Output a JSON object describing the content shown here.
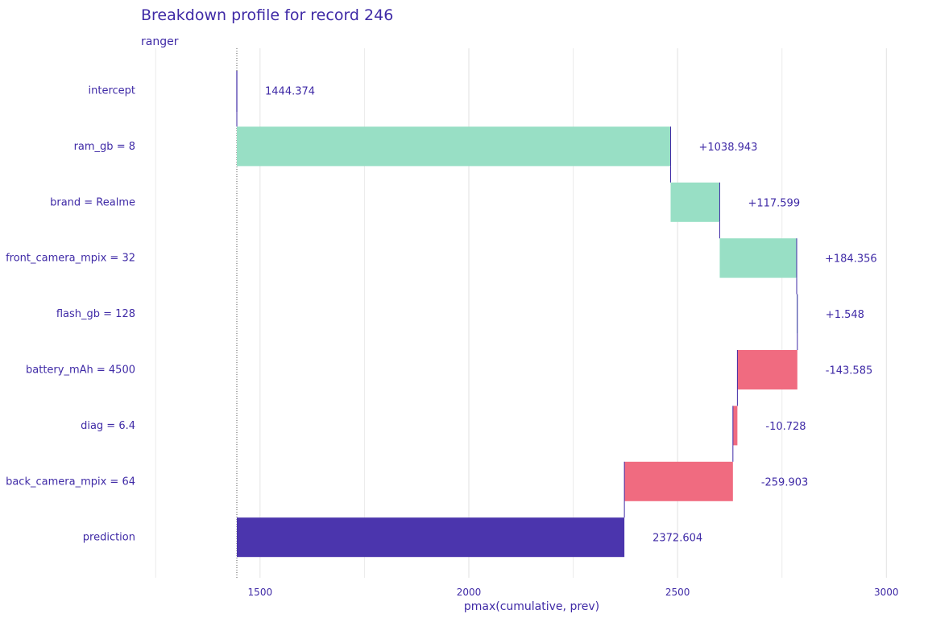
{
  "chart_data": {
    "type": "waterfall",
    "title": "Breakdown profile for record 246",
    "subtitle": "ranger",
    "xlabel": "pmax(cumulative, prev)",
    "xlim": [
      1250,
      3000
    ],
    "xticks": [
      1500,
      2000,
      2500,
      3000
    ],
    "grid": true,
    "colors": {
      "positive": "#98dfc5",
      "negative": "#f06b80",
      "prediction": "#4b35ad",
      "line": "#3f2aa6"
    },
    "bars": [
      {
        "label": "intercept",
        "start": 1444.374,
        "end": 1444.374,
        "value_label": "1444.374",
        "kind": "intercept"
      },
      {
        "label": "ram_gb = 8",
        "start": 1444.374,
        "end": 2483.317,
        "value_label": "+1038.943",
        "kind": "positive"
      },
      {
        "label": "brand = Realme",
        "start": 2483.317,
        "end": 2600.916,
        "value_label": "+117.599",
        "kind": "positive"
      },
      {
        "label": "front_camera_mpix = 32",
        "start": 2600.916,
        "end": 2785.272,
        "value_label": "+184.356",
        "kind": "positive"
      },
      {
        "label": "flash_gb = 128",
        "start": 2785.272,
        "end": 2786.82,
        "value_label": "+1.548",
        "kind": "positive"
      },
      {
        "label": "battery_mAh = 4500",
        "start": 2786.82,
        "end": 2643.235,
        "value_label": "-143.585",
        "kind": "negative"
      },
      {
        "label": "diag = 6.4",
        "start": 2643.235,
        "end": 2632.507,
        "value_label": "-10.728",
        "kind": "negative"
      },
      {
        "label": "back_camera_mpix = 64",
        "start": 2632.507,
        "end": 2372.604,
        "value_label": "-259.903",
        "kind": "negative"
      },
      {
        "label": "prediction",
        "start": 1444.374,
        "end": 2372.604,
        "value_label": "2372.604",
        "kind": "prediction"
      }
    ]
  }
}
